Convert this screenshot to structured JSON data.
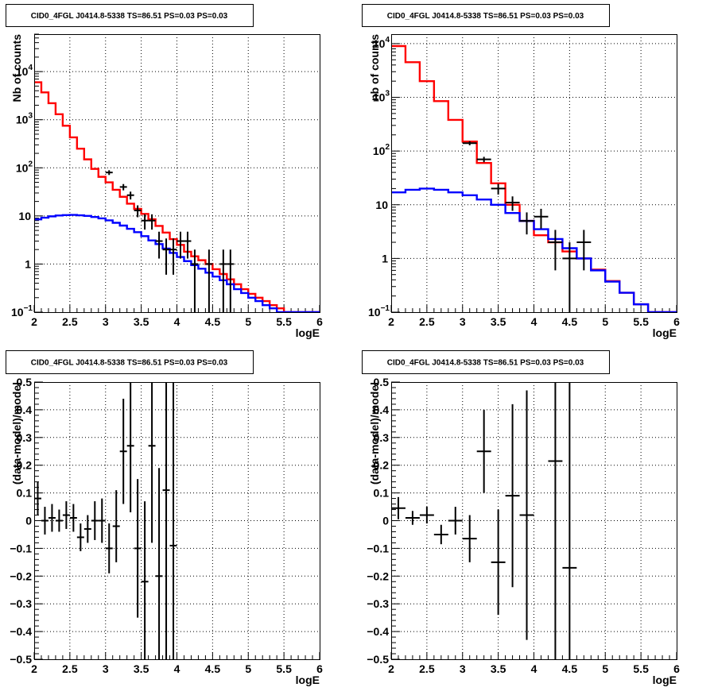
{
  "colors": {
    "data": "#000000",
    "total_model": "#ff0000",
    "source_model": "#0000ff",
    "background": "#ffffff"
  },
  "chart_data": [
    {
      "type": "line",
      "title": "CID0_4FGL J0414.8-5338 TS=86.51 PS=0.03 PS=0.03",
      "xlabel": "logE",
      "ylabel": "Nb of counts",
      "xlim": [
        2,
        6
      ],
      "ylim": [
        0.1,
        60000
      ],
      "yscale": "log",
      "grid": true,
      "x_ticks": [
        "2",
        "2.5",
        "3",
        "3.5",
        "4",
        "4.5",
        "5",
        "5.5",
        "6"
      ],
      "y_ticks": [
        {
          "v": 0.1,
          "base": "10",
          "exp": "−1"
        },
        {
          "v": 1,
          "base": "1",
          "exp": ""
        },
        {
          "v": 10,
          "base": "10",
          "exp": ""
        },
        {
          "v": 100,
          "base": "10",
          "exp": "2"
        },
        {
          "v": 1000,
          "base": "10",
          "exp": "3"
        },
        {
          "v": 10000,
          "base": "10",
          "exp": "4"
        }
      ],
      "bin_width": 0.1,
      "series": [
        {
          "kind": "step",
          "color": "#ff0000",
          "x_edges": [
            2.0,
            2.1,
            2.2,
            2.3,
            2.4,
            2.5,
            2.6,
            2.7,
            2.8,
            2.9,
            3.0,
            3.1,
            3.2,
            3.3,
            3.4,
            3.5,
            3.6,
            3.7,
            3.8,
            3.9,
            4.0,
            4.1,
            4.2,
            4.3,
            4.4,
            4.5,
            4.6,
            4.7,
            4.8,
            4.9,
            5.0,
            5.1,
            5.2,
            5.3,
            5.4,
            5.5,
            5.6,
            5.7,
            5.8,
            5.9,
            6.0
          ],
          "values": [
            6000,
            3700,
            2200,
            1300,
            750,
            430,
            250,
            150,
            95,
            65,
            50,
            35,
            25,
            18,
            14,
            11,
            8.5,
            6.2,
            4.5,
            3.3,
            2.5,
            1.8,
            1.45,
            1.2,
            1.0,
            0.78,
            0.62,
            0.48,
            0.38,
            0.3,
            0.24,
            0.2,
            0.17,
            0.14,
            0.12,
            0.1,
            0.1,
            0.1,
            0.1,
            0.1
          ]
        },
        {
          "kind": "step",
          "color": "#0000ff",
          "x_edges": [
            2.0,
            2.1,
            2.2,
            2.3,
            2.4,
            2.5,
            2.6,
            2.7,
            2.8,
            2.9,
            3.0,
            3.1,
            3.2,
            3.3,
            3.4,
            3.5,
            3.6,
            3.7,
            3.8,
            3.9,
            4.0,
            4.1,
            4.2,
            4.3,
            4.4,
            4.5,
            4.6,
            4.7,
            4.8,
            4.9,
            5.0,
            5.1,
            5.2,
            5.3,
            5.4,
            5.5,
            5.6,
            5.7,
            5.8,
            5.9,
            6.0
          ],
          "values": [
            8.5,
            9.2,
            9.8,
            10.2,
            10.4,
            10.5,
            10.3,
            10.0,
            9.5,
            8.9,
            8.1,
            7.2,
            6.3,
            5.4,
            4.6,
            3.8,
            3.1,
            2.6,
            2.1,
            1.7,
            1.4,
            1.15,
            0.95,
            0.8,
            0.66,
            0.55,
            0.46,
            0.38,
            0.3,
            0.25,
            0.2,
            0.17,
            0.14,
            0.12,
            0.1,
            0.1,
            0.1,
            0.1,
            0.1,
            0.1
          ]
        },
        {
          "kind": "errorbar",
          "color": "#000000",
          "points": [
            {
              "x": 3.05,
              "y": 80,
              "yerr_lo": 9,
              "yerr_hi": 9
            },
            {
              "x": 3.25,
              "y": 40,
              "yerr_lo": 6,
              "yerr_hi": 6
            },
            {
              "x": 3.35,
              "y": 27,
              "yerr_lo": 5,
              "yerr_hi": 5
            },
            {
              "x": 3.45,
              "y": 13,
              "yerr_lo": 3.6,
              "yerr_hi": 3.6
            },
            {
              "x": 3.55,
              "y": 8,
              "yerr_lo": 2.8,
              "yerr_hi": 2.8
            },
            {
              "x": 3.65,
              "y": 8,
              "yerr_lo": 2.8,
              "yerr_hi": 2.8
            },
            {
              "x": 3.75,
              "y": 3,
              "yerr_lo": 1.7,
              "yerr_hi": 1.7
            },
            {
              "x": 3.85,
              "y": 2,
              "yerr_lo": 1.4,
              "yerr_hi": 1.4
            },
            {
              "x": 3.95,
              "y": 2,
              "yerr_lo": 1.4,
              "yerr_hi": 1.4
            },
            {
              "x": 4.05,
              "y": 3,
              "yerr_lo": 1.7,
              "yerr_hi": 1.7
            },
            {
              "x": 4.15,
              "y": 3,
              "yerr_lo": 1.7,
              "yerr_hi": 1.7
            },
            {
              "x": 4.25,
              "y": 1,
              "yerr_lo": 0.97,
              "yerr_hi": 1
            },
            {
              "x": 4.45,
              "y": 1,
              "yerr_lo": 0.97,
              "yerr_hi": 1
            },
            {
              "x": 4.65,
              "y": 1,
              "yerr_lo": 0.97,
              "yerr_hi": 1
            },
            {
              "x": 4.75,
              "y": 1,
              "yerr_lo": 0.97,
              "yerr_hi": 1
            }
          ]
        }
      ]
    },
    {
      "type": "line",
      "title": "CID0_4FGL J0414.8-5338 TS=86.51 PS=0.03 PS=0.03",
      "xlabel": "logE",
      "ylabel": "nb of counts",
      "xlim": [
        2,
        6
      ],
      "ylim": [
        0.1,
        15000
      ],
      "yscale": "log",
      "grid": true,
      "x_ticks": [
        "2",
        "2.5",
        "3",
        "3.5",
        "4",
        "4.5",
        "5",
        "5.5",
        "6"
      ],
      "y_ticks": [
        {
          "v": 0.1,
          "base": "10",
          "exp": "−1"
        },
        {
          "v": 1,
          "base": "1",
          "exp": ""
        },
        {
          "v": 10,
          "base": "10",
          "exp": ""
        },
        {
          "v": 100,
          "base": "10",
          "exp": "2"
        },
        {
          "v": 1000,
          "base": "10",
          "exp": "3"
        },
        {
          "v": 10000,
          "base": "10",
          "exp": "4"
        }
      ],
      "bin_width": 0.2,
      "series": [
        {
          "kind": "step",
          "color": "#ff0000",
          "x_edges": [
            2.0,
            2.2,
            2.4,
            2.6,
            2.8,
            3.0,
            3.2,
            3.4,
            3.6,
            3.8,
            4.0,
            4.2,
            4.4,
            4.6,
            4.8,
            5.0,
            5.2,
            5.4,
            5.6,
            5.8,
            6.0
          ],
          "values": [
            9000,
            4500,
            2000,
            850,
            380,
            150,
            60,
            25,
            10,
            5,
            2.7,
            2.0,
            1.35,
            1.0,
            0.62,
            0.38,
            0.23,
            0.14,
            0.1,
            0.1
          ]
        },
        {
          "kind": "step",
          "color": "#0000ff",
          "x_edges": [
            2.0,
            2.2,
            2.4,
            2.6,
            2.8,
            3.0,
            3.2,
            3.4,
            3.6,
            3.8,
            4.0,
            4.2,
            4.4,
            4.6,
            4.8,
            5.0,
            5.2,
            5.4,
            5.6,
            5.8,
            6.0
          ],
          "values": [
            17,
            19,
            20,
            19,
            17,
            15,
            12.5,
            10,
            7,
            5,
            3.5,
            2.3,
            1.55,
            1.0,
            0.6,
            0.37,
            0.23,
            0.14,
            0.1,
            0.1
          ]
        },
        {
          "kind": "errorbar",
          "color": "#000000",
          "points": [
            {
              "x": 3.1,
              "y": 140,
              "yerr_lo": 12,
              "yerr_hi": 12
            },
            {
              "x": 3.3,
              "y": 70,
              "yerr_lo": 8,
              "yerr_hi": 8
            },
            {
              "x": 3.5,
              "y": 20,
              "yerr_lo": 4.5,
              "yerr_hi": 4.5
            },
            {
              "x": 3.7,
              "y": 11,
              "yerr_lo": 3.3,
              "yerr_hi": 3.3
            },
            {
              "x": 3.9,
              "y": 5,
              "yerr_lo": 2.2,
              "yerr_hi": 2.2
            },
            {
              "x": 4.1,
              "y": 6,
              "yerr_lo": 2.4,
              "yerr_hi": 2.4
            },
            {
              "x": 4.3,
              "y": 2,
              "yerr_lo": 1.4,
              "yerr_hi": 1.4
            },
            {
              "x": 4.5,
              "y": 1,
              "yerr_lo": 0.97,
              "yerr_hi": 1
            },
            {
              "x": 4.7,
              "y": 2,
              "yerr_lo": 1.4,
              "yerr_hi": 1.4
            }
          ]
        }
      ]
    },
    {
      "type": "scatter",
      "title": "CID0_4FGL J0414.8-5338 TS=86.51 PS=0.03 PS=0.03",
      "xlabel": "logE",
      "ylabel": "(data-model)/model",
      "xlim": [
        2,
        6
      ],
      "ylim": [
        -0.5,
        0.5
      ],
      "yscale": "linear",
      "grid": true,
      "x_ticks": [
        "2",
        "2.5",
        "3",
        "3.5",
        "4",
        "4.5",
        "5",
        "5.5",
        "6"
      ],
      "y_ticks": [
        "−0.5",
        "−0.4",
        "−0.3",
        "−0.2",
        "−0.1",
        "0",
        "0.1",
        "0.2",
        "0.3",
        "0.4",
        "0.5"
      ],
      "bin_width": 0.1,
      "series": [
        {
          "kind": "errorbar",
          "color": "#000000",
          "points": [
            {
              "x": 2.05,
              "y": 0.08,
              "yerr": 0.06
            },
            {
              "x": 2.15,
              "y": 0.0,
              "yerr": 0.05
            },
            {
              "x": 2.25,
              "y": 0.01,
              "yerr": 0.05
            },
            {
              "x": 2.35,
              "y": 0.0,
              "yerr": 0.04
            },
            {
              "x": 2.45,
              "y": 0.02,
              "yerr": 0.05
            },
            {
              "x": 2.55,
              "y": 0.01,
              "yerr": 0.05
            },
            {
              "x": 2.65,
              "y": -0.06,
              "yerr": 0.05
            },
            {
              "x": 2.75,
              "y": -0.03,
              "yerr": 0.05
            },
            {
              "x": 2.85,
              "y": 0.0,
              "yerr": 0.07
            },
            {
              "x": 2.95,
              "y": 0.0,
              "yerr": 0.08
            },
            {
              "x": 3.05,
              "y": -0.1,
              "yerr": 0.09
            },
            {
              "x": 3.15,
              "y": -0.02,
              "yerr": 0.13
            },
            {
              "x": 3.25,
              "y": 0.25,
              "yerr": 0.19
            },
            {
              "x": 3.35,
              "y": 0.27,
              "yerr": 0.24
            },
            {
              "x": 3.45,
              "y": -0.1,
              "yerr": 0.25
            },
            {
              "x": 3.55,
              "y": -0.22,
              "yerr": 0.29
            },
            {
              "x": 3.65,
              "y": 0.27,
              "yerr": 0.35
            },
            {
              "x": 3.75,
              "y": -0.2,
              "yerr": 0.39
            },
            {
              "x": 3.85,
              "y": 0.11,
              "yerr": 0.7
            },
            {
              "x": 3.95,
              "y": -0.09,
              "yerr": 0.8
            }
          ]
        }
      ]
    },
    {
      "type": "scatter",
      "title": "CID0_4FGL J0414.8-5338 TS=86.51 PS=0.03 PS=0.03",
      "xlabel": "logE",
      "ylabel": "(data-model)/model",
      "xlim": [
        2,
        6
      ],
      "ylim": [
        -0.5,
        0.5
      ],
      "yscale": "linear",
      "grid": true,
      "x_ticks": [
        "2",
        "2.5",
        "3",
        "3.5",
        "4",
        "4.5",
        "5",
        "5.5",
        "6"
      ],
      "y_ticks": [
        "−0.5",
        "−0.4",
        "−0.3",
        "−0.2",
        "−0.1",
        "0",
        "0.1",
        "0.2",
        "0.3",
        "0.4",
        "0.5"
      ],
      "bin_width": 0.2,
      "series": [
        {
          "kind": "errorbar",
          "color": "#000000",
          "points": [
            {
              "x": 2.1,
              "y": 0.045,
              "yerr": 0.04
            },
            {
              "x": 2.3,
              "y": 0.01,
              "yerr": 0.025
            },
            {
              "x": 2.5,
              "y": 0.02,
              "yerr": 0.03
            },
            {
              "x": 2.7,
              "y": -0.05,
              "yerr": 0.035
            },
            {
              "x": 2.9,
              "y": 0.0,
              "yerr": 0.05
            },
            {
              "x": 3.1,
              "y": -0.065,
              "yerr": 0.085
            },
            {
              "x": 3.3,
              "y": 0.25,
              "yerr": 0.15
            },
            {
              "x": 3.5,
              "y": -0.15,
              "yerr": 0.19
            },
            {
              "x": 3.7,
              "y": 0.09,
              "yerr": 0.33
            },
            {
              "x": 3.9,
              "y": 0.02,
              "yerr": 0.45
            },
            {
              "x": 4.3,
              "y": 0.215,
              "yerr": 0.9
            },
            {
              "x": 4.5,
              "y": -0.17,
              "yerr": 0.9
            }
          ]
        }
      ]
    }
  ]
}
